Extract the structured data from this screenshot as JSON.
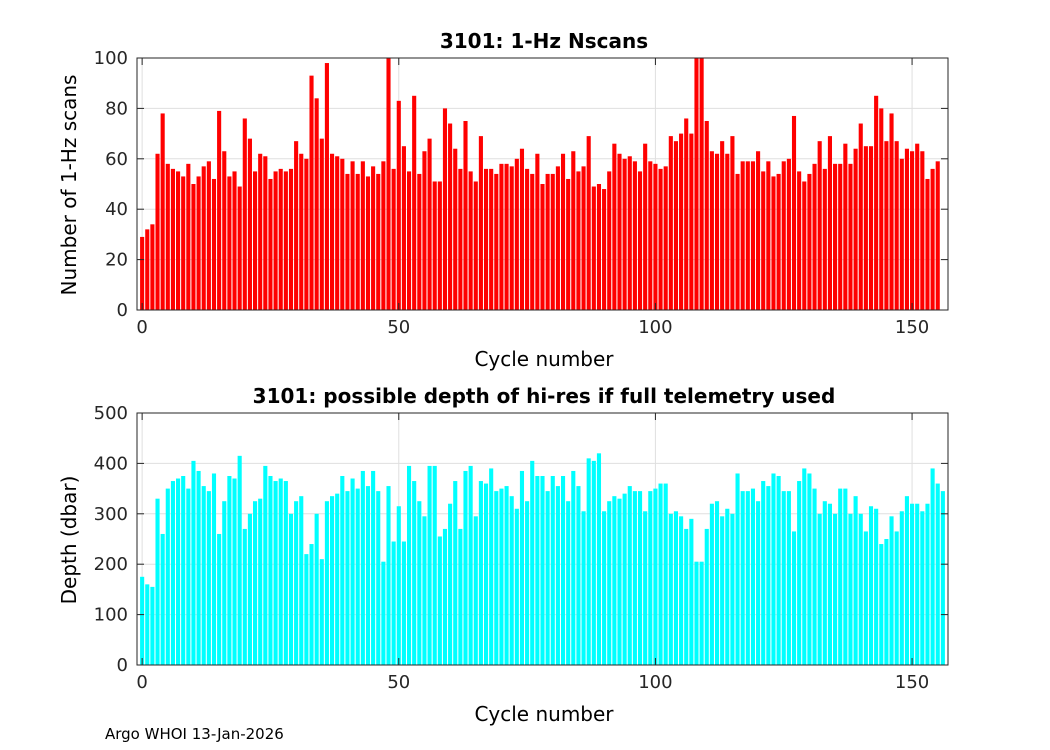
{
  "footer": "Argo WHOI 13-Jan-2026",
  "chart_data": [
    {
      "type": "bar",
      "title": "3101: 1-Hz Nscans",
      "xlabel": "Cycle number",
      "ylabel": "Number of 1-Hz scans",
      "xlim": [
        -1,
        157
      ],
      "ylim": [
        0,
        100
      ],
      "xticks": [
        0,
        50,
        100,
        150
      ],
      "yticks": [
        0,
        20,
        40,
        60,
        80,
        100
      ],
      "grid": true,
      "color": "#ff0000",
      "x_start": 0,
      "values": [
        29,
        32,
        34,
        62,
        78,
        58,
        56,
        55,
        53,
        58,
        50,
        53,
        57,
        59,
        52,
        79,
        63,
        53,
        55,
        49,
        76,
        68,
        55,
        62,
        61,
        52,
        55,
        56,
        55,
        56,
        67,
        62,
        60,
        93,
        84,
        68,
        98,
        62,
        61,
        60,
        54,
        59,
        54,
        59,
        53,
        57,
        54,
        59,
        100,
        56,
        83,
        65,
        55,
        85,
        54,
        63,
        68,
        51,
        51,
        80,
        74,
        64,
        56,
        75,
        55,
        51,
        69,
        56,
        56,
        54,
        58,
        58,
        57,
        60,
        64,
        56,
        54,
        62,
        50,
        54,
        54,
        57,
        62,
        52,
        63,
        55,
        57,
        69,
        49,
        50,
        48,
        55,
        66,
        62,
        60,
        61,
        59,
        55,
        66,
        59,
        58,
        56,
        57,
        69,
        67,
        70,
        76,
        70,
        100,
        100,
        75,
        63,
        62,
        67,
        62,
        69,
        54,
        59,
        59,
        59,
        63,
        55,
        59,
        53,
        54,
        59,
        60,
        77,
        55,
        51,
        54,
        58,
        67,
        56,
        69,
        58,
        58,
        66,
        58,
        64,
        74,
        65,
        65,
        85,
        80,
        67,
        78,
        67,
        60,
        64,
        63,
        66,
        63,
        52,
        56,
        59
      ]
    },
    {
      "type": "bar",
      "title": "3101: possible depth of hi-res if full telemetry used",
      "xlabel": "Cycle number",
      "ylabel": "Depth (dbar)",
      "xlim": [
        -1,
        157
      ],
      "ylim": [
        0,
        500
      ],
      "xticks": [
        0,
        50,
        100,
        150
      ],
      "yticks": [
        0,
        100,
        200,
        300,
        400,
        500
      ],
      "grid": true,
      "color": "#00ffff",
      "x_start": 0,
      "values": [
        175,
        160,
        155,
        330,
        260,
        350,
        365,
        370,
        375,
        350,
        405,
        385,
        355,
        345,
        380,
        260,
        325,
        375,
        370,
        415,
        270,
        300,
        325,
        330,
        395,
        375,
        365,
        370,
        365,
        300,
        325,
        335,
        220,
        240,
        300,
        210,
        325,
        335,
        340,
        375,
        345,
        370,
        350,
        385,
        355,
        385,
        345,
        205,
        355,
        245,
        315,
        245,
        395,
        365,
        325,
        295,
        395,
        395,
        255,
        270,
        320,
        365,
        270,
        385,
        395,
        295,
        365,
        360,
        390,
        345,
        350,
        355,
        335,
        310,
        385,
        325,
        405,
        375,
        375,
        345,
        375,
        355,
        375,
        325,
        385,
        355,
        305,
        410,
        405,
        420,
        305,
        325,
        335,
        330,
        340,
        355,
        345,
        345,
        305,
        345,
        350,
        360,
        360,
        300,
        305,
        295,
        270,
        290,
        205,
        205,
        270,
        320,
        325,
        295,
        310,
        300,
        380,
        345,
        345,
        350,
        325,
        365,
        355,
        380,
        375,
        345,
        345,
        265,
        365,
        390,
        380,
        350,
        300,
        325,
        320,
        300,
        350,
        350,
        300,
        335,
        300,
        265,
        315,
        310,
        240,
        250,
        295,
        265,
        305,
        335,
        320,
        320,
        305,
        320,
        390,
        360,
        345
      ]
    }
  ]
}
